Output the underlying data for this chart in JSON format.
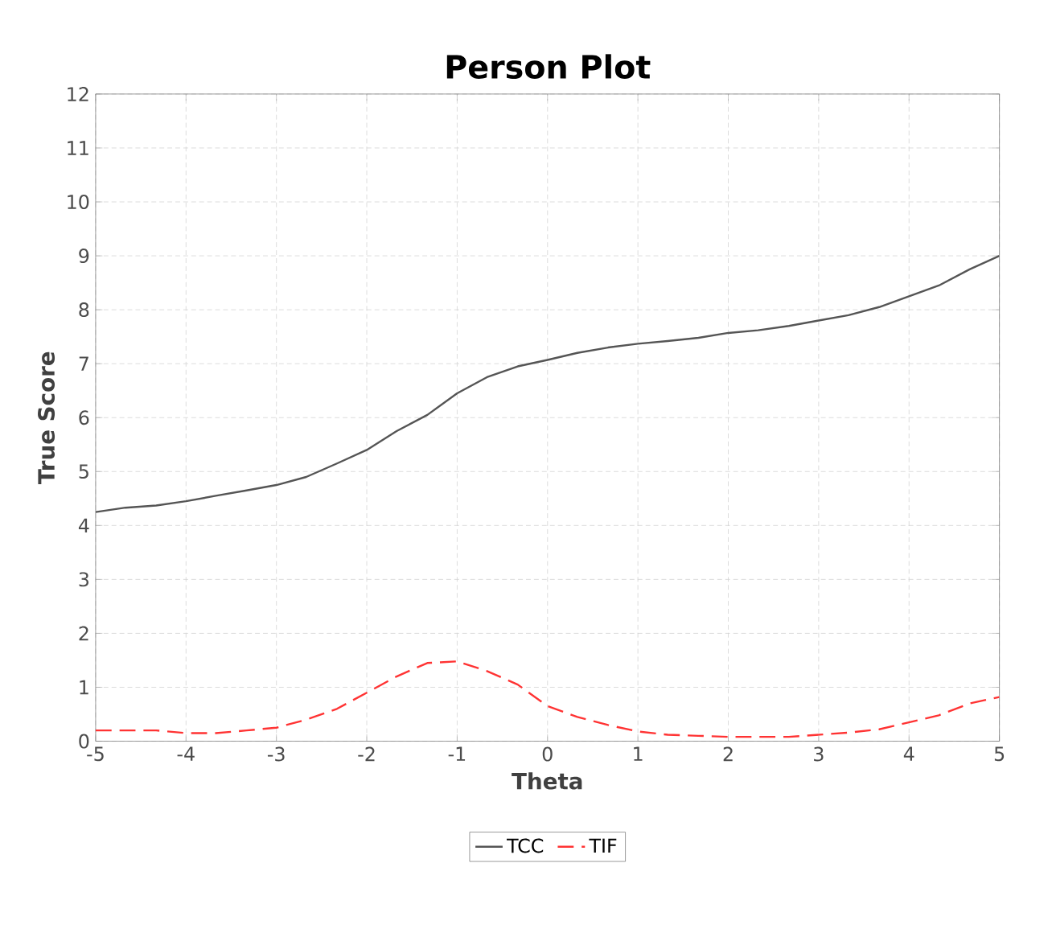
{
  "chart_data": {
    "type": "line",
    "title": "Person Plot",
    "xlabel": "Theta",
    "ylabel": "True Score",
    "xlim": [
      -5,
      5
    ],
    "xticks": [
      -5,
      -4,
      -3,
      -2,
      -1,
      0,
      1,
      2,
      3,
      4,
      5
    ],
    "ylim": [
      0,
      12
    ],
    "yticks": [
      0,
      1,
      2,
      3,
      4,
      5,
      6,
      7,
      8,
      9,
      10,
      11,
      12
    ],
    "grid": true,
    "legend": "bottom",
    "marker": "none",
    "x": [
      -5,
      -4.67,
      -4.33,
      -4,
      -3.67,
      -3.33,
      -3,
      -2.67,
      -2.33,
      -2,
      -1.67,
      -1.33,
      -1,
      -0.67,
      -0.33,
      0,
      0.33,
      0.67,
      1,
      1.33,
      1.67,
      2,
      2.33,
      2.67,
      3,
      3.33,
      3.67,
      4,
      4.33,
      4.67,
      5
    ],
    "series": [
      {
        "name": "TCC",
        "color": "#555555",
        "line_style": "solid",
        "values": [
          4.25,
          4.33,
          4.37,
          4.45,
          4.55,
          4.65,
          4.75,
          4.9,
          5.15,
          5.4,
          5.75,
          6.05,
          6.45,
          6.75,
          6.95,
          7.07,
          7.2,
          7.3,
          7.37,
          7.42,
          7.48,
          7.57,
          7.62,
          7.7,
          7.8,
          7.9,
          8.05,
          8.25,
          8.45,
          8.75,
          9.0
        ]
      },
      {
        "name": "TIF",
        "color": "#ff3333",
        "line_style": "dashed",
        "values": [
          0.2,
          0.2,
          0.2,
          0.15,
          0.15,
          0.2,
          0.25,
          0.4,
          0.6,
          0.9,
          1.2,
          1.45,
          1.48,
          1.3,
          1.05,
          0.65,
          0.45,
          0.3,
          0.18,
          0.12,
          0.1,
          0.08,
          0.08,
          0.08,
          0.12,
          0.16,
          0.22,
          0.35,
          0.48,
          0.7,
          0.82
        ]
      }
    ]
  }
}
